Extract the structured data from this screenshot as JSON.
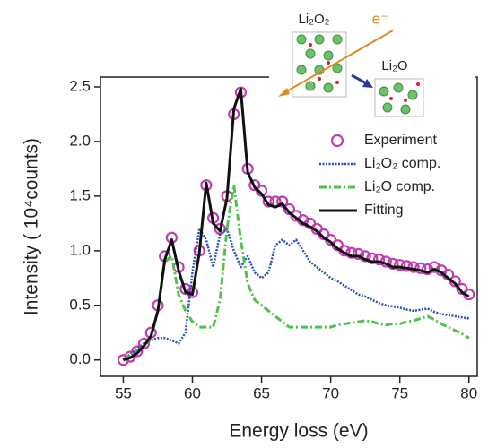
{
  "chart_data": {
    "type": "line",
    "xlabel": "Energy loss (eV)",
    "ylabel": "Intensity ( 10⁴counts)",
    "annotations": [
      "Li₂O₂",
      "e⁻",
      "Li₂O"
    ],
    "xlim": [
      53.35,
      80.6
    ],
    "ylim": [
      -0.15,
      2.59
    ],
    "xticks": [
      55,
      60,
      65,
      70,
      75,
      80
    ],
    "yticks": [
      {
        "value": 0,
        "label": "0.0"
      },
      0.5,
      {
        "value": 1,
        "label": "1.0"
      },
      1.5,
      {
        "value": 2,
        "label": "2.0"
      },
      2.5
    ],
    "legend": "upper right",
    "x": [
      55,
      55.5,
      56,
      56.5,
      57,
      57.5,
      58,
      58.5,
      59,
      59.5,
      60,
      60.5,
      61,
      61.5,
      62,
      62.5,
      63,
      63.5,
      64,
      64.5,
      65,
      65.5,
      66,
      66.5,
      67,
      67.5,
      68,
      68.5,
      69,
      69.5,
      70,
      70.5,
      71,
      71.5,
      72,
      72.5,
      73,
      73.5,
      74,
      74.5,
      75,
      75.5,
      76,
      76.5,
      77,
      77.5,
      78,
      78.5,
      79,
      79.5,
      80
    ],
    "series": [
      {
        "name": "Experiment",
        "color": "#c23bb0",
        "style": "markers",
        "values": [
          0.0,
          0.03,
          0.08,
          0.15,
          0.25,
          0.5,
          0.95,
          1.12,
          0.85,
          0.65,
          0.62,
          1.0,
          1.6,
          1.3,
          1.2,
          1.5,
          2.25,
          2.45,
          1.75,
          1.6,
          1.55,
          1.45,
          1.45,
          1.45,
          1.38,
          1.32,
          1.28,
          1.25,
          1.2,
          1.15,
          1.1,
          1.05,
          1.0,
          0.98,
          0.97,
          0.95,
          0.93,
          0.92,
          0.9,
          0.88,
          0.87,
          0.86,
          0.85,
          0.84,
          0.83,
          0.85,
          0.82,
          0.78,
          0.72,
          0.65,
          0.6
        ]
      },
      {
        "name": "Li₂O₂ comp.",
        "color": "#2a4fb8",
        "style": "dotted",
        "values": [
          0.0,
          0.05,
          0.1,
          0.15,
          0.18,
          0.2,
          0.2,
          0.18,
          0.15,
          0.25,
          0.8,
          1.2,
          1.1,
          0.85,
          1.15,
          1.2,
          1.0,
          0.85,
          0.95,
          0.8,
          0.75,
          0.8,
          1.05,
          1.1,
          1.05,
          1.1,
          1.0,
          0.9,
          0.85,
          0.8,
          0.75,
          0.72,
          0.68,
          0.64,
          0.6,
          0.58,
          0.55,
          0.52,
          0.5,
          0.49,
          0.48,
          0.46,
          0.45,
          0.46,
          0.47,
          0.44,
          0.42,
          0.41,
          0.4,
          0.39,
          0.38
        ]
      },
      {
        "name": "Li₂O comp.",
        "color": "#4cc24a",
        "style": "dashdot",
        "values": [
          0.0,
          0.04,
          0.08,
          0.12,
          0.2,
          0.45,
          0.9,
          0.95,
          0.6,
          0.45,
          0.35,
          0.3,
          0.3,
          0.3,
          0.55,
          1.2,
          1.6,
          1.1,
          0.7,
          0.55,
          0.5,
          0.45,
          0.4,
          0.35,
          0.3,
          0.3,
          0.3,
          0.3,
          0.3,
          0.3,
          0.3,
          0.32,
          0.33,
          0.34,
          0.35,
          0.36,
          0.35,
          0.33,
          0.32,
          0.33,
          0.33,
          0.35,
          0.36,
          0.38,
          0.4,
          0.37,
          0.33,
          0.3,
          0.27,
          0.24,
          0.2
        ]
      },
      {
        "name": "Fitting",
        "color": "#111111",
        "style": "solid",
        "values": [
          0.0,
          0.02,
          0.06,
          0.13,
          0.22,
          0.45,
          0.92,
          1.1,
          0.82,
          0.62,
          0.6,
          0.98,
          1.62,
          1.25,
          1.18,
          1.48,
          2.3,
          2.48,
          1.72,
          1.58,
          1.52,
          1.42,
          1.4,
          1.43,
          1.35,
          1.3,
          1.25,
          1.22,
          1.18,
          1.12,
          1.08,
          1.02,
          0.98,
          0.95,
          0.95,
          0.92,
          0.9,
          0.9,
          0.88,
          0.85,
          0.85,
          0.84,
          0.83,
          0.82,
          0.8,
          0.83,
          0.8,
          0.75,
          0.7,
          0.62,
          0.58
        ]
      }
    ]
  }
}
